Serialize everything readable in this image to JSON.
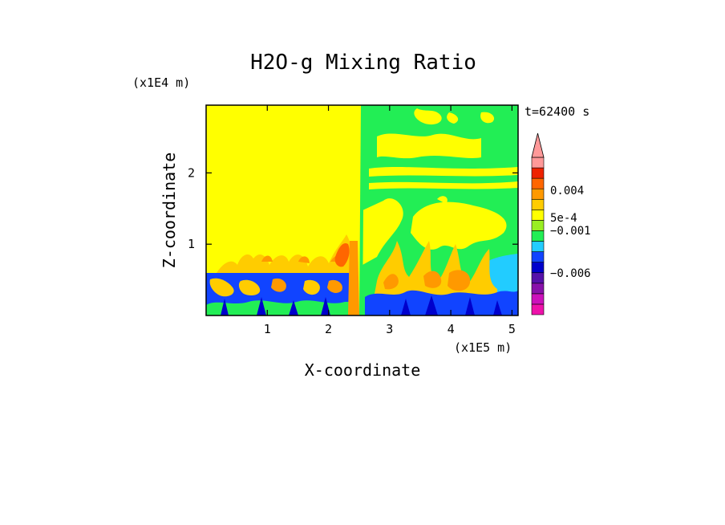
{
  "chart_data": {
    "type": "heatmap",
    "title": "H2O-g Mixing Ratio",
    "xlabel": "X-coordinate",
    "ylabel": "Z-coordinate",
    "x_unit": "(x1E5 m)",
    "y_unit": "(x1E4 m)",
    "time_label": "t=62400 s",
    "xlim": [
      0,
      5.1
    ],
    "ylim": [
      0,
      2.95
    ],
    "x_ticks": [
      1,
      2,
      3,
      4,
      5
    ],
    "x_tick_labels": [
      "1",
      "2",
      "3",
      "4",
      "5"
    ],
    "y_ticks": [
      1,
      2
    ],
    "y_tick_labels": [
      "1",
      "2"
    ],
    "colorbar": {
      "colors": [
        "#ee11aa",
        "#cc11bb",
        "#8811aa",
        "#5511aa",
        "#0000cc",
        "#1144ff",
        "#22ccff",
        "#22ee55",
        "#99ee22",
        "#ffff00",
        "#ffcc00",
        "#ff9900",
        "#ff6600",
        "#ee2200",
        "#ff9999"
      ],
      "labels": [
        "0.004",
        "5e-4",
        "−0.001",
        "−0.006"
      ],
      "extend": "max"
    },
    "regions": [
      {
        "x": [
          0,
          5.1
        ],
        "z": [
          0,
          2.95
        ],
        "value_class": "near-zero",
        "color": "#ffff00"
      },
      {
        "x": [
          2.55,
          5.1
        ],
        "z": [
          1.25,
          2.95
        ],
        "value_class": "slightly-negative",
        "color": "#22ee55"
      },
      {
        "x": [
          0,
          2.55
        ],
        "z": [
          0,
          0.6
        ],
        "value_class": "strongly-negative",
        "color": "#1144ff"
      },
      {
        "x": [
          2.55,
          5.1
        ],
        "z": [
          0,
          0.4
        ],
        "value_class": "strongly-negative",
        "color": "#1144ff"
      },
      {
        "x": [
          0.3,
          2.5
        ],
        "z": [
          0.5,
          1.0
        ],
        "value_class": "positive-plumes",
        "color": "#ff9900"
      },
      {
        "x": [
          4.6,
          5.1
        ],
        "z": [
          0.45,
          0.8
        ],
        "value_class": "moderately-negative",
        "color": "#22ccff"
      }
    ]
  }
}
